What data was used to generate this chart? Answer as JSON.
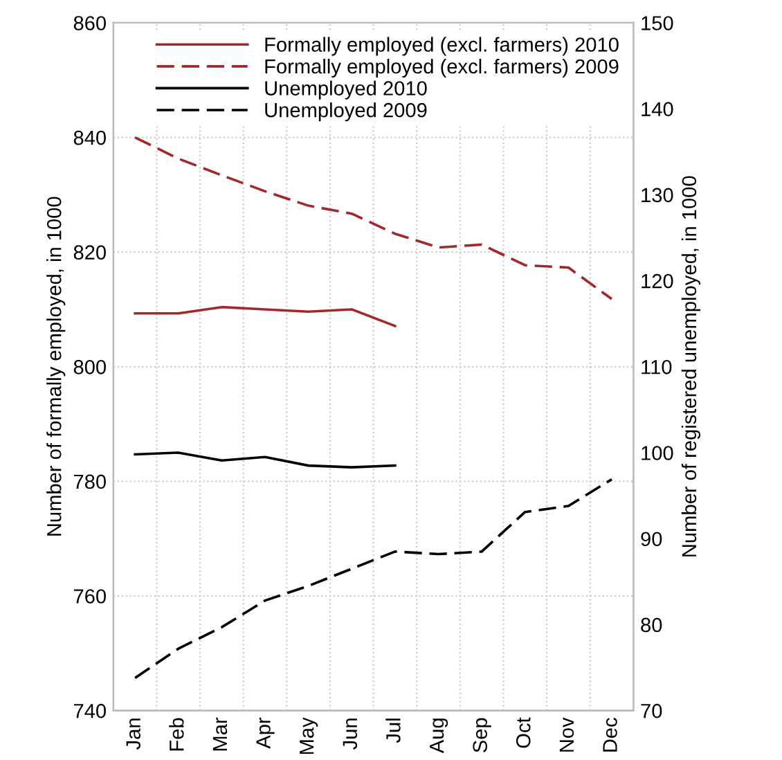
{
  "chart_data": {
    "type": "line",
    "categories": [
      "Jan",
      "Feb",
      "Mar",
      "Apr",
      "May",
      "Jun",
      "Jul",
      "Aug",
      "Sep",
      "Oct",
      "Nov",
      "Dec"
    ],
    "ylabel": "Number of formally employed, in 1000",
    "y2label": "Number of registered unemployed, in 1000",
    "ylim": [
      740,
      860
    ],
    "yticks": [
      740,
      760,
      780,
      800,
      820,
      840,
      860
    ],
    "y2lim": [
      70,
      150
    ],
    "y2ticks": [
      70,
      80,
      90,
      100,
      110,
      120,
      130,
      140,
      150
    ],
    "grid": true,
    "legend": "top right",
    "series": [
      {
        "name": "Formally employed (excl. farmers) 2010",
        "color": "#a3282b",
        "line_style": "solid",
        "values": [
          809.3,
          809.3,
          810.4,
          810.0,
          809.6,
          810.0,
          807.1,
          null,
          null,
          null,
          null,
          null
        ]
      },
      {
        "name": "Formally employed (excl. farmers) 2009",
        "color": "#a3282b",
        "line_style": "dashed",
        "values": [
          840.0,
          836.3,
          833.4,
          830.6,
          828.1,
          826.7,
          823.2,
          820.8,
          821.3,
          817.7,
          817.3,
          811.8
        ]
      },
      {
        "name": "Unemployed 2010",
        "color": "#000000",
        "line_style": "solid",
        "axis": "y2",
        "values": [
          99.8,
          100.0,
          99.1,
          99.5,
          98.5,
          98.3,
          98.5,
          null,
          null,
          null,
          null,
          null
        ]
      },
      {
        "name": "Unemployed 2009",
        "color": "#000000",
        "line_style": "dashed",
        "axis": "y2",
        "values": [
          73.8,
          77.2,
          79.7,
          82.8,
          84.5,
          86.5,
          88.5,
          88.2,
          88.5,
          93.1,
          93.8,
          96.9
        ]
      }
    ]
  }
}
